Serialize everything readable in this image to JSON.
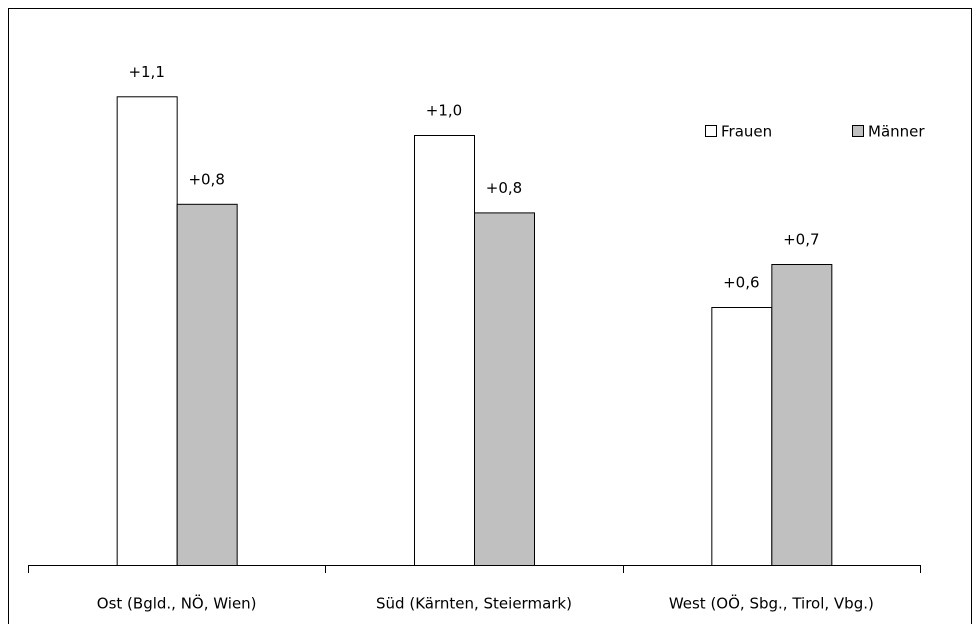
{
  "chart_data": {
    "type": "bar",
    "categories": [
      "Ost (Bgld., NÖ, Wien)",
      "Süd (Kärnten, Steiermark)",
      "West (OÖ, Sbg., Tirol, Vbg.)"
    ],
    "series": [
      {
        "name": "Frauen",
        "color": "#ffffff",
        "values": [
          1.09,
          1.0,
          0.6
        ],
        "value_labels": [
          "+1,1",
          "+1,0",
          "+0,6"
        ]
      },
      {
        "name": "Männer",
        "color": "#c0c0c0",
        "values": [
          0.84,
          0.82,
          0.7
        ],
        "value_labels": [
          "+0,8",
          "+0,8",
          "+0,7"
        ]
      }
    ],
    "legend": "top-right"
  }
}
